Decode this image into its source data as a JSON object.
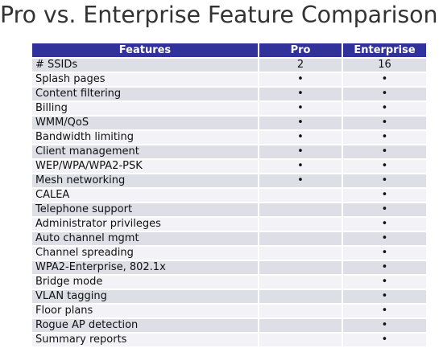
{
  "title": "Pro vs. Enterprise Feature Comparison",
  "table": {
    "headers": [
      "Features",
      "Pro",
      "Enterprise"
    ],
    "rows": [
      {
        "feature": "# SSIDs",
        "pro": "2",
        "enterprise": "16"
      },
      {
        "feature": "Splash pages",
        "pro": "•",
        "enterprise": "•"
      },
      {
        "feature": "Content filtering",
        "pro": "•",
        "enterprise": "•"
      },
      {
        "feature": "Billing",
        "pro": "•",
        "enterprise": "•"
      },
      {
        "feature": "WMM/QoS",
        "pro": "•",
        "enterprise": "•"
      },
      {
        "feature": "Bandwidth limiting",
        "pro": "•",
        "enterprise": "•"
      },
      {
        "feature": "Client management",
        "pro": "•",
        "enterprise": "•"
      },
      {
        "feature": "WEP/WPA/WPA2-PSK",
        "pro": "•",
        "enterprise": "•"
      },
      {
        "feature": "Mesh networking",
        "pro": "•",
        "enterprise": "•"
      },
      {
        "feature": "CALEA",
        "pro": "",
        "enterprise": "•"
      },
      {
        "feature": "Telephone support",
        "pro": "",
        "enterprise": "•"
      },
      {
        "feature": "Administrator privileges",
        "pro": "",
        "enterprise": "•"
      },
      {
        "feature": "Auto channel mgmt",
        "pro": "",
        "enterprise": "•"
      },
      {
        "feature": "Channel spreading",
        "pro": "",
        "enterprise": "•"
      },
      {
        "feature": "WPA2-Enterprise, 802.1x",
        "pro": "",
        "enterprise": "•"
      },
      {
        "feature": "Bridge mode",
        "pro": "",
        "enterprise": "•"
      },
      {
        "feature": "VLAN tagging",
        "pro": "",
        "enterprise": "•"
      },
      {
        "feature": "Floor plans",
        "pro": "",
        "enterprise": "•"
      },
      {
        "feature": "Rogue AP detection",
        "pro": "",
        "enterprise": "•"
      },
      {
        "feature": "Summary reports",
        "pro": "",
        "enterprise": "•"
      }
    ]
  },
  "colors": {
    "header_bg": "#30319a",
    "row_odd": "#dddee6",
    "row_even": "#f3f3f7"
  }
}
